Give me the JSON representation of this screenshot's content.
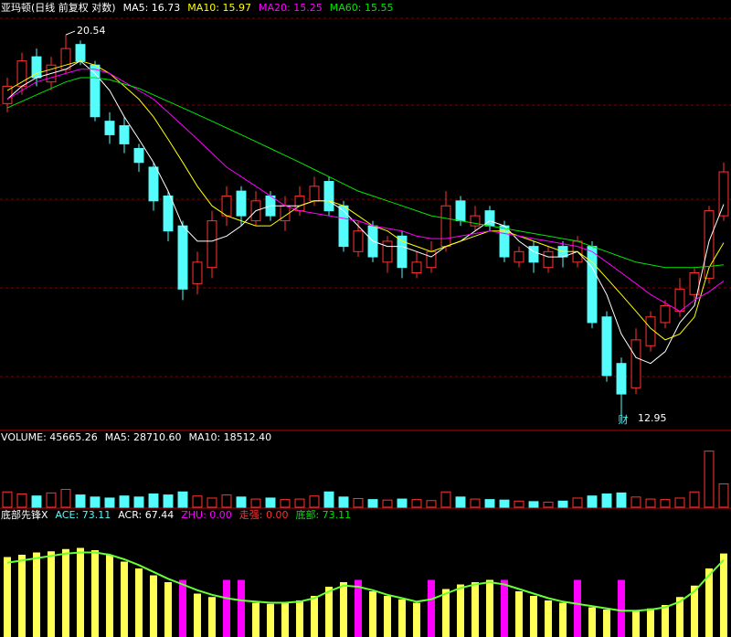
{
  "chart_data": [
    {
      "type": "candlestick",
      "title": "亚玛顿(日线 前复权 对数)",
      "title_color": "#ffffff",
      "log_scale": true,
      "ylim": [
        12.74,
        21.0
      ],
      "up_color": "#ff3232",
      "down_color": "#54fcfc",
      "open": [
        18.9,
        19.3,
        20.0,
        19.4,
        19.7,
        20.3,
        19.8,
        18.5,
        18.4,
        17.9,
        17.5,
        16.9,
        16.3,
        15.2,
        15.5,
        16.5,
        17.0,
        16.4,
        16.9,
        16.4,
        16.6,
        16.8,
        17.2,
        16.7,
        15.8,
        16.3,
        15.6,
        16.1,
        15.4,
        15.5,
        15.9,
        16.8,
        16.3,
        16.6,
        16.3,
        15.6,
        15.9,
        15.5,
        15.9,
        15.6,
        15.9,
        14.6,
        13.8,
        13.4,
        14.1,
        14.5,
        14.7,
        15.0,
        15.3,
        16.5
      ],
      "high": [
        19.5,
        20.1,
        20.2,
        20.0,
        20.54,
        20.4,
        19.9,
        18.7,
        18.6,
        18.0,
        17.6,
        17.0,
        16.4,
        15.8,
        16.6,
        17.1,
        17.1,
        17.0,
        17.0,
        16.9,
        17.1,
        17.3,
        17.3,
        16.8,
        16.4,
        16.4,
        16.1,
        16.2,
        15.8,
        16.0,
        17.0,
        16.9,
        16.7,
        16.7,
        16.4,
        15.9,
        16.0,
        15.9,
        16.0,
        16.1,
        16.0,
        14.7,
        13.9,
        14.4,
        14.7,
        14.9,
        15.3,
        15.5,
        16.7,
        17.6
      ],
      "low": [
        18.7,
        19.1,
        19.3,
        19.2,
        19.6,
        19.8,
        18.5,
        18.0,
        17.8,
        17.4,
        16.6,
        16.0,
        14.9,
        15.0,
        15.3,
        16.3,
        16.3,
        16.3,
        16.4,
        16.2,
        16.5,
        16.7,
        16.5,
        15.8,
        15.7,
        15.6,
        15.4,
        15.3,
        15.3,
        15.4,
        15.8,
        16.3,
        16.2,
        16.2,
        15.6,
        15.5,
        15.4,
        15.4,
        15.5,
        15.5,
        14.4,
        13.5,
        12.95,
        13.3,
        14.0,
        14.4,
        14.6,
        14.9,
        15.2,
        16.4
      ],
      "close": [
        19.3,
        19.9,
        19.5,
        19.8,
        20.2,
        19.9,
        18.6,
        18.2,
        18.0,
        17.6,
        16.8,
        16.2,
        15.1,
        15.6,
        16.4,
        16.9,
        16.5,
        16.8,
        16.5,
        16.7,
        16.9,
        17.1,
        16.6,
        15.9,
        16.2,
        15.7,
        16.0,
        15.5,
        15.6,
        15.8,
        16.7,
        16.4,
        16.5,
        16.3,
        15.7,
        15.8,
        15.6,
        15.8,
        15.7,
        16.0,
        14.5,
        13.6,
        13.3,
        14.2,
        14.6,
        14.8,
        15.1,
        15.4,
        16.6,
        17.4
      ],
      "series": [
        {
          "name": "MA5",
          "label": "MA5: 16.73",
          "color": "#ffffff",
          "values": [
            19.0,
            19.3,
            19.5,
            19.6,
            19.7,
            19.9,
            19.6,
            19.2,
            18.6,
            18.1,
            17.6,
            17.0,
            16.3,
            16.0,
            16.0,
            16.1,
            16.3,
            16.6,
            16.7,
            16.7,
            16.7,
            16.8,
            16.8,
            16.6,
            16.3,
            16.0,
            15.9,
            15.9,
            15.8,
            15.7,
            15.9,
            16.0,
            16.2,
            16.4,
            16.3,
            16.0,
            15.8,
            15.7,
            15.7,
            15.8,
            15.5,
            15.0,
            14.3,
            13.9,
            13.8,
            14.0,
            14.5,
            14.8,
            16.0,
            16.73
          ]
        },
        {
          "name": "MA10",
          "label": "MA10: 15.97",
          "color": "#ffff00",
          "values": [
            19.2,
            19.4,
            19.6,
            19.7,
            19.8,
            19.9,
            19.8,
            19.6,
            19.3,
            19.0,
            18.6,
            18.1,
            17.6,
            17.1,
            16.7,
            16.5,
            16.4,
            16.3,
            16.3,
            16.5,
            16.7,
            16.8,
            16.8,
            16.7,
            16.5,
            16.3,
            16.2,
            16.0,
            15.9,
            15.8,
            15.9,
            16.0,
            16.1,
            16.2,
            16.2,
            16.1,
            16.0,
            15.9,
            15.8,
            15.8,
            15.6,
            15.3,
            15.0,
            14.7,
            14.4,
            14.2,
            14.3,
            14.6,
            15.5,
            15.97
          ]
        },
        {
          "name": "MA20",
          "label": "MA20: 15.25",
          "color": "#ff00ff",
          "values": [
            19.0,
            19.2,
            19.4,
            19.5,
            19.6,
            19.7,
            19.7,
            19.6,
            19.4,
            19.2,
            19.0,
            18.7,
            18.4,
            18.1,
            17.8,
            17.5,
            17.3,
            17.1,
            16.9,
            16.7,
            16.6,
            16.55,
            16.5,
            16.45,
            16.4,
            16.3,
            16.25,
            16.2,
            16.1,
            16.05,
            16.05,
            16.1,
            16.15,
            16.2,
            16.15,
            16.1,
            16.05,
            16.0,
            15.95,
            15.9,
            15.8,
            15.6,
            15.4,
            15.2,
            15.0,
            14.85,
            14.7,
            14.9,
            15.05,
            15.25
          ]
        },
        {
          "name": "MA60",
          "label": "MA60: 15.55",
          "color": "#00e600",
          "values": [
            18.8,
            18.95,
            19.1,
            19.25,
            19.4,
            19.5,
            19.5,
            19.45,
            19.35,
            19.25,
            19.1,
            18.95,
            18.8,
            18.65,
            18.5,
            18.35,
            18.2,
            18.05,
            17.9,
            17.75,
            17.6,
            17.45,
            17.3,
            17.15,
            17.0,
            16.9,
            16.8,
            16.7,
            16.6,
            16.5,
            16.45,
            16.4,
            16.35,
            16.3,
            16.25,
            16.2,
            16.15,
            16.1,
            16.05,
            16.0,
            15.9,
            15.8,
            15.7,
            15.6,
            15.55,
            15.5,
            15.5,
            15.5,
            15.52,
            15.55
          ]
        }
      ],
      "max_label": "20.54",
      "min_label": "12.95",
      "min_note": "财"
    },
    {
      "type": "volume",
      "header": [
        {
          "text": "VOLUME: 45665.26",
          "color": "#ffffff"
        },
        {
          "text": "MA5: 28710.60",
          "color": "#ffffff"
        },
        {
          "text": "MA10: 18512.40",
          "color": "#ffffff"
        }
      ],
      "ylim": [
        0,
        120000
      ],
      "values": [
        30000,
        26000,
        22000,
        28000,
        35000,
        24000,
        20000,
        18000,
        22000,
        20000,
        26000,
        24000,
        30000,
        22000,
        18000,
        24000,
        20000,
        16000,
        18000,
        15000,
        16000,
        22000,
        30000,
        20000,
        17000,
        15000,
        14000,
        16000,
        15000,
        13000,
        30000,
        20000,
        16000,
        15000,
        14000,
        12000,
        11000,
        10000,
        12000,
        18000,
        22000,
        26000,
        28000,
        20000,
        16000,
        15000,
        18000,
        30000,
        110000,
        45665.26
      ]
    },
    {
      "type": "indicator",
      "header": [
        {
          "text": "底部先锋X",
          "color": "#ffffff"
        },
        {
          "text": "ACE: 73.11",
          "color": "#54fcfc"
        },
        {
          "text": "ACR: 67.44",
          "color": "#ffffff"
        },
        {
          "text": "ZHU: 0.00",
          "color": "#ff00ff"
        },
        {
          "text": "走强: 0.00",
          "color": "#ff3232"
        },
        {
          "text": "底部: 73.11",
          "color": "#00e600"
        }
      ],
      "ylim": [
        0,
        100
      ],
      "series": [
        {
          "name": "ACE",
          "kind": "bar",
          "color": "#ffff54",
          "values": [
            70,
            72,
            74,
            75,
            77,
            78,
            76,
            72,
            66,
            60,
            54,
            48,
            42,
            38,
            35,
            33,
            31,
            30,
            29,
            30,
            32,
            36,
            44,
            48,
            45,
            40,
            36,
            33,
            30,
            35,
            42,
            46,
            48,
            50,
            46,
            40,
            36,
            32,
            30,
            28,
            26,
            24,
            22,
            23,
            25,
            28,
            35,
            45,
            60,
            73.11
          ]
        },
        {
          "name": "ZHU",
          "kind": "bar",
          "color": "#ff00ff",
          "values": [
            0,
            0,
            0,
            0,
            0,
            0,
            0,
            0,
            0,
            0,
            0,
            0,
            50,
            0,
            0,
            50,
            50,
            0,
            0,
            0,
            0,
            0,
            0,
            0,
            50,
            0,
            0,
            0,
            0,
            50,
            0,
            0,
            0,
            0,
            50,
            0,
            0,
            0,
            0,
            50,
            0,
            0,
            50,
            0,
            0,
            0,
            0,
            0,
            0,
            0
          ]
        },
        {
          "name": "ACR",
          "kind": "line",
          "color": "#66ff33",
          "values": [
            65,
            67,
            69,
            71,
            73,
            74,
            74,
            72,
            68,
            63,
            57,
            51,
            46,
            41,
            37,
            34,
            32,
            31,
            30,
            30,
            31,
            34,
            40,
            45,
            44,
            41,
            37,
            34,
            31,
            33,
            38,
            43,
            46,
            48,
            46,
            42,
            38,
            34,
            31,
            29,
            27,
            25,
            23,
            23,
            24,
            26,
            31,
            40,
            54,
            67.44
          ]
        }
      ]
    }
  ]
}
